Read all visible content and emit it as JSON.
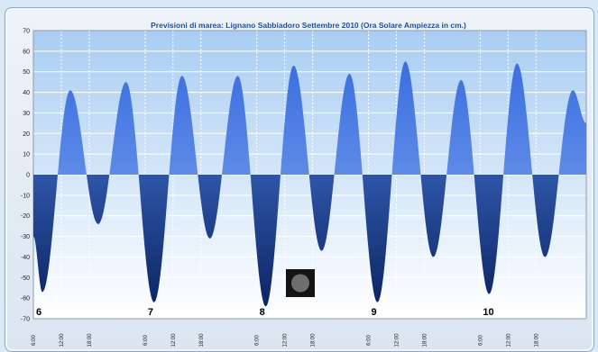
{
  "chart_data": {
    "type": "area",
    "title": "Previsioni di marea: Lignano Sabbiadoro Settembre 2010 (Ora Solare Ampiezza in cm.)",
    "xlabel": "",
    "ylabel": "",
    "ylim": [
      -70,
      70
    ],
    "yticks": [
      "-70",
      "-60",
      "-50",
      "-40",
      "-30",
      "-20",
      "-10",
      "0",
      "10",
      "20",
      "30",
      "40",
      "50",
      "60",
      "70"
    ],
    "grid": true,
    "x_tick_labels": [
      "6:00",
      "12:00",
      "18:00",
      "6:00",
      "12:00",
      "18:00",
      "6:00",
      "12:00",
      "18:00",
      "6:00",
      "12:00",
      "18:00",
      "6:00",
      "12:00",
      "18:00"
    ],
    "day_labels": [
      {
        "label": "6",
        "day_offset": 0
      },
      {
        "label": "7",
        "day_offset": 1
      },
      {
        "label": "8",
        "day_offset": 2
      },
      {
        "label": "9",
        "day_offset": 3
      },
      {
        "label": "10",
        "day_offset": 4
      }
    ],
    "x_range_days": [
      6.0,
      10.95
    ],
    "extrema": [
      {
        "day": 6.0,
        "value": -30
      },
      {
        "day": 6.08,
        "value": -57
      },
      {
        "day": 6.33,
        "value": 41
      },
      {
        "day": 6.58,
        "value": -24
      },
      {
        "day": 6.83,
        "value": 45
      },
      {
        "day": 7.08,
        "value": -62
      },
      {
        "day": 7.33,
        "value": 48
      },
      {
        "day": 7.58,
        "value": -31
      },
      {
        "day": 7.83,
        "value": 48
      },
      {
        "day": 8.08,
        "value": -64
      },
      {
        "day": 8.33,
        "value": 53
      },
      {
        "day": 8.58,
        "value": -37
      },
      {
        "day": 8.83,
        "value": 49
      },
      {
        "day": 9.08,
        "value": -62
      },
      {
        "day": 9.33,
        "value": 55
      },
      {
        "day": 9.58,
        "value": -40
      },
      {
        "day": 9.83,
        "value": 46
      },
      {
        "day": 10.08,
        "value": -58
      },
      {
        "day": 10.33,
        "value": 54
      },
      {
        "day": 10.58,
        "value": -40
      },
      {
        "day": 10.83,
        "value": 41
      },
      {
        "day": 10.95,
        "value": 25
      }
    ]
  },
  "colors": {
    "positive_top": "#3b6fe0",
    "positive_bottom": "#7fa6ee",
    "negative_top": "#3f6fd8",
    "negative_bottom": "#0e2a6e",
    "plot_bg_top": "#a9cdf3",
    "plot_bg_bottom": "#ffffff",
    "title": "#1d4fa0"
  },
  "icons": {
    "overlay": "gray-circle-square-icon"
  }
}
